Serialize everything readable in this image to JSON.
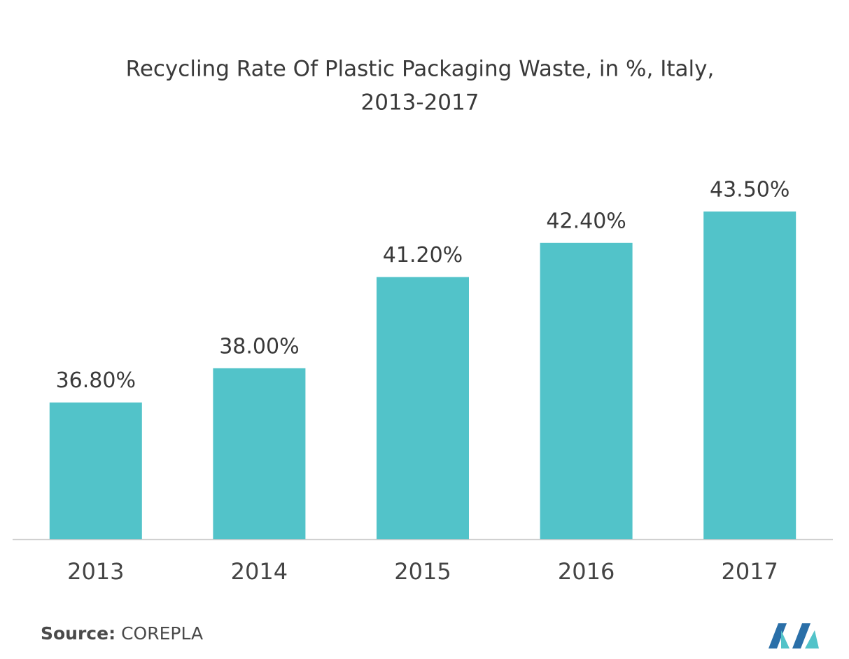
{
  "chart_data": {
    "type": "bar",
    "title": [
      "Recycling Rate Of Plastic Packaging Waste, in %, Italy,",
      "2013-2017"
    ],
    "categories": [
      "2013",
      "2014",
      "2015",
      "2016",
      "2017"
    ],
    "values": [
      36.8,
      38.0,
      41.2,
      42.4,
      43.5
    ],
    "value_labels": [
      "36.80%",
      "38.00%",
      "41.20%",
      "42.40%",
      "43.50%"
    ],
    "color": "#52c3c9",
    "ylim": [
      32,
      45
    ],
    "source_label": "Source:",
    "source": "COREPLA"
  }
}
